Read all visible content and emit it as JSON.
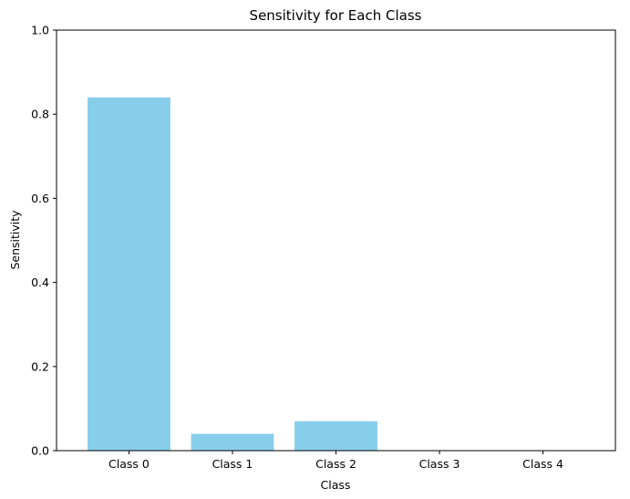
{
  "chart_data": {
    "type": "bar",
    "title": "Sensitivity for Each Class",
    "xlabel": "Class",
    "ylabel": "Sensitivity",
    "categories": [
      "Class 0",
      "Class 1",
      "Class 2",
      "Class 3",
      "Class 4"
    ],
    "values": [
      0.84,
      0.04,
      0.07,
      0.0,
      0.0
    ],
    "ylim": [
      0,
      1
    ],
    "yticks": [
      "0.0",
      "0.2",
      "0.4",
      "0.6",
      "0.8",
      "1.0"
    ],
    "bar_color": "#87ceeb",
    "grid": false,
    "legend": "none"
  }
}
